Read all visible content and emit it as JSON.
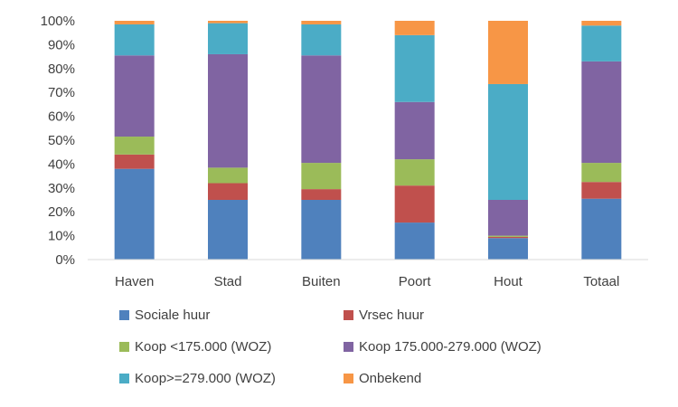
{
  "chart_data": {
    "type": "bar",
    "stacked": true,
    "normalized": true,
    "title": "",
    "xlabel": "",
    "ylabel": "",
    "ylim": [
      0,
      100
    ],
    "yticks": [
      "0%",
      "10%",
      "20%",
      "30%",
      "40%",
      "50%",
      "60%",
      "70%",
      "80%",
      "90%",
      "100%"
    ],
    "categories": [
      "Haven",
      "Stad",
      "Buiten",
      "Poort",
      "Hout",
      "Totaal"
    ],
    "series": [
      {
        "name": "Sociale huur",
        "color": "#4F81BD",
        "values": [
          38,
          25,
          25,
          15.5,
          9,
          25.5
        ]
      },
      {
        "name": "Vrsec huur",
        "color": "#C0504D",
        "values": [
          6,
          7,
          4.5,
          15.5,
          0.5,
          7
        ]
      },
      {
        "name": "Koop <175.000 (WOZ)",
        "color": "#9BBB59",
        "values": [
          7.5,
          6.5,
          11,
          11,
          0.5,
          8
        ]
      },
      {
        "name": "Koop 175.000-279.000 (WOZ)",
        "color": "#8064A2",
        "values": [
          34,
          47.5,
          45,
          24,
          15,
          42.5
        ]
      },
      {
        "name": "Koop>=279.000 (WOZ)",
        "color": "#4BACC6",
        "values": [
          13,
          13,
          13,
          28,
          48.5,
          15
        ]
      },
      {
        "name": "Onbekend",
        "color": "#F79646",
        "values": [
          1.5,
          1,
          1.5,
          6,
          26.5,
          2
        ]
      }
    ],
    "legend_position": "bottom",
    "grid": false
  }
}
